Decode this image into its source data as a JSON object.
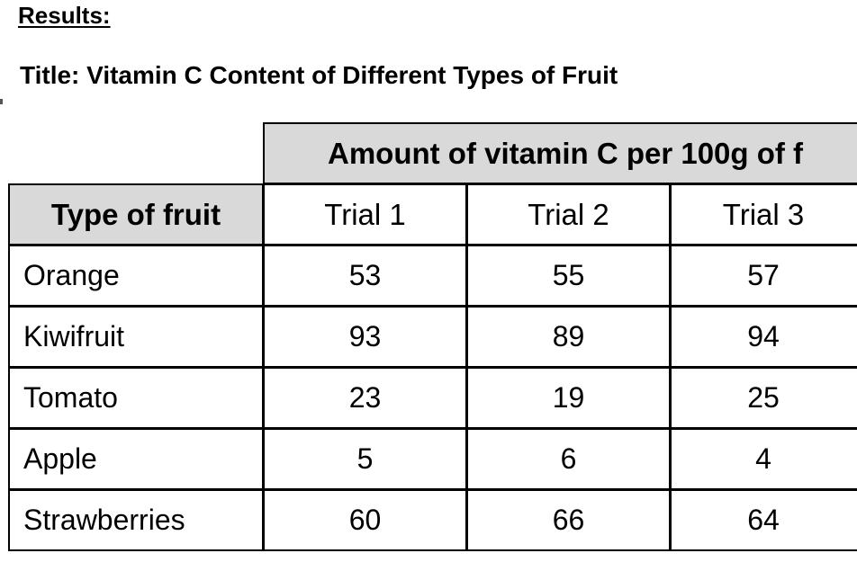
{
  "document": {
    "heading": "Results:",
    "title": "Title: Vitamin C Content of Different Types of Fruit"
  },
  "table": {
    "group_header": "Amount of vitamin C per 100g of f",
    "row_header": "Type of fruit",
    "columns": [
      "Trial 1",
      "Trial 2",
      "Trial 3"
    ],
    "rows": [
      {
        "fruit": "Orange",
        "values": [
          "53",
          "55",
          "57"
        ]
      },
      {
        "fruit": "Kiwifruit",
        "values": [
          "93",
          "89",
          "94"
        ]
      },
      {
        "fruit": "Tomato",
        "values": [
          "23",
          "19",
          "25"
        ]
      },
      {
        "fruit": "Apple",
        "values": [
          "5",
          "6",
          "4"
        ]
      },
      {
        "fruit": "Strawberries",
        "values": [
          "60",
          "66",
          "64"
        ]
      }
    ],
    "header_fill": "#d9d9d9",
    "border_color": "#000000"
  }
}
